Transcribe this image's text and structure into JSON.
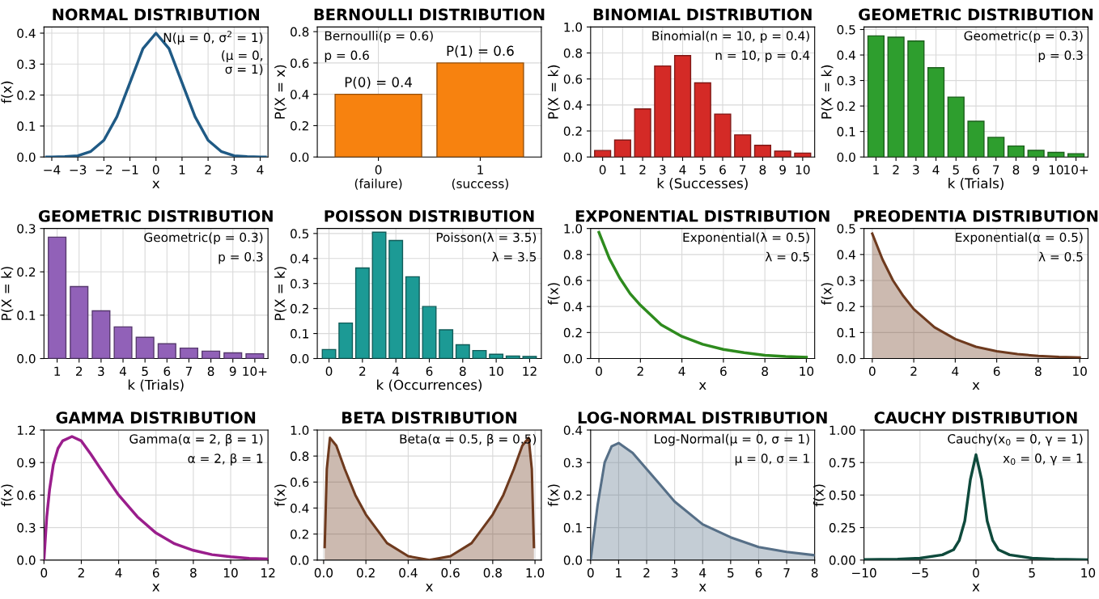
{
  "chart_data": [
    {
      "type": "line",
      "title": "NORMAL DISTRIBUTION",
      "xlabel": "x",
      "ylabel": "f(x)",
      "grid": true,
      "color": "#1f5a85",
      "x": [
        -4.2,
        -4,
        -3.5,
        -3,
        -2.5,
        -2,
        -1.5,
        -1,
        -0.5,
        0,
        0.5,
        1,
        1.5,
        2,
        2.5,
        3,
        3.5,
        4,
        4.2
      ],
      "values": [
        0,
        0,
        0.001,
        0.004,
        0.018,
        0.054,
        0.13,
        0.24,
        0.35,
        0.4,
        0.35,
        0.24,
        0.13,
        0.054,
        0.018,
        0.004,
        0.001,
        0,
        0
      ],
      "xlim": [
        -4.3,
        4.3
      ],
      "xticks": [
        {
          "value": -4,
          "label": "−4"
        },
        {
          "value": -3,
          "label": "−3"
        },
        {
          "value": -2,
          "label": "−2"
        },
        {
          "value": -1,
          "label": "−1"
        },
        0,
        1,
        2,
        3,
        4
      ],
      "ylim": [
        0,
        0.42
      ],
      "yticks": [
        {
          "value": 0,
          "label": "0.0"
        },
        0.1,
        0.2,
        0.3,
        0.4
      ],
      "annotations": [
        "N(μ = 0, σ$^{2}$ = 1)",
        "(μ = 0,\nσ = 1)"
      ]
    },
    {
      "type": "bar",
      "title": "BERNOULLI DISTRIBUTION",
      "ylabel": "P(X = x)",
      "grid": true,
      "color": "#f7820f",
      "categories": [
        "0\n(failure)",
        "1\n(success)"
      ],
      "values": [
        0.4,
        0.6
      ],
      "value_labels": [
        "P(0) = 0.4",
        "P(1) = 0.6"
      ],
      "ylim": [
        0,
        0.83
      ],
      "yticks": [
        {
          "value": 0,
          "label": "0.0"
        },
        0.2,
        0.4,
        0.6,
        0.8
      ],
      "annotations": [
        "Bernoulli(p = 0.6)",
        "p = 0.6"
      ]
    },
    {
      "type": "bar",
      "title": "BINOMIAL DISTRIBUTION",
      "xlabel": "k (Successes)",
      "ylabel": "P(X = k)",
      "grid": true,
      "color": "#d42a26",
      "categories": [
        "0",
        "1",
        "2",
        "3",
        "4",
        "5",
        "6",
        "7",
        "8",
        "9",
        "10"
      ],
      "values": [
        0.05,
        0.13,
        0.37,
        0.7,
        0.78,
        0.57,
        0.33,
        0.17,
        0.09,
        0.045,
        0.03
      ],
      "ylim": [
        0,
        1.0
      ],
      "yticks": [
        {
          "value": 0,
          "label": "0.0"
        },
        0.2,
        0.4,
        0.6,
        0.8,
        {
          "value": 1,
          "label": "1.0"
        }
      ],
      "annotations": [
        "Binomial(n = 10, p = 0.4)",
        "n = 10, p = 0.4"
      ]
    },
    {
      "type": "bar",
      "title": "GEOMETRIC DISTRIBUTION",
      "xlabel": "k (Trials)",
      "ylabel": "P(X = k)",
      "grid": true,
      "color": "#2e9e2e",
      "categories": [
        "1",
        "2",
        "3",
        "4",
        "5",
        "6",
        "7",
        "8",
        "9",
        "10",
        "10+"
      ],
      "values": [
        0.475,
        0.47,
        0.455,
        0.35,
        0.235,
        0.14,
        0.077,
        0.043,
        0.026,
        0.018,
        0.013
      ],
      "ylim": [
        0,
        0.51
      ],
      "yticks": [
        {
          "value": 0,
          "label": "0.0"
        },
        0.1,
        0.2,
        0.3,
        0.4,
        0.5
      ],
      "annotations": [
        "Geometric(p = 0.3)",
        "p = 0.3"
      ]
    },
    {
      "type": "bar",
      "title": "GEOMETRIC DISTRIBUTION",
      "xlabel": "k (Trials)",
      "ylabel": "P(X = k)",
      "grid": true,
      "color": "#9161b8",
      "categories": [
        "1",
        "2",
        "3",
        "4",
        "5",
        "6",
        "7",
        "8",
        "9",
        "10+"
      ],
      "values": [
        0.28,
        0.166,
        0.11,
        0.073,
        0.049,
        0.034,
        0.024,
        0.017,
        0.013,
        0.011
      ],
      "ylim": [
        0,
        0.3
      ],
      "yticks": [
        {
          "value": 0,
          "label": "0.0"
        },
        0.1,
        0.2,
        0.3
      ],
      "annotations": [
        "Geometric(p = 0.3)",
        "p = 0.3"
      ]
    },
    {
      "type": "bar",
      "title": "POISSON DISTRIBUTION",
      "xlabel": "k (Occurrences)",
      "ylabel": "P(X = k)",
      "grid": true,
      "color": "#1c9a95",
      "x": [
        0,
        1,
        2,
        3,
        4,
        5,
        6,
        7,
        8,
        9,
        10,
        11,
        12
      ],
      "values": [
        0.036,
        0.142,
        0.362,
        0.505,
        0.472,
        0.327,
        0.208,
        0.115,
        0.055,
        0.032,
        0.017,
        0.01,
        0.008
      ],
      "xlim": [
        -0.7,
        12.7
      ],
      "xticks": [
        0,
        2,
        4,
        6,
        8,
        10,
        12
      ],
      "ylim": [
        0,
        0.52
      ],
      "yticks": [
        {
          "value": 0,
          "label": "0.0"
        },
        0.1,
        0.2,
        0.3,
        0.4,
        0.5
      ],
      "annotations": [
        "Poisson(λ = 3.5)",
        "λ = 3.5"
      ]
    },
    {
      "type": "line",
      "title": "EXPONENTIAL DISTRIBUTION",
      "xlabel": "x",
      "ylabel": "f(x)",
      "grid": true,
      "color": "#2e8b1e",
      "x": [
        0,
        0.5,
        1,
        1.5,
        2,
        3,
        4,
        5,
        6,
        7,
        8,
        9,
        10
      ],
      "values": [
        0.97,
        0.77,
        0.62,
        0.5,
        0.41,
        0.26,
        0.17,
        0.11,
        0.07,
        0.045,
        0.025,
        0.015,
        0.01
      ],
      "xlim": [
        -0.4,
        10.4
      ],
      "xticks": [
        0,
        2,
        4,
        6,
        8,
        10
      ],
      "ylim": [
        0,
        1.0
      ],
      "yticks": [
        {
          "value": 0,
          "label": "0.0"
        },
        0.2,
        0.4,
        0.6,
        0.8,
        {
          "value": 1,
          "label": "1.0"
        }
      ],
      "annotations": [
        "Exponential(λ = 0.5)",
        "λ = 0.5"
      ]
    },
    {
      "type": "area",
      "title": "PREODENTIA DISTRIBUTION",
      "xlabel": "x",
      "ylabel": "f(x)",
      "grid": true,
      "color": "#6e3a1e",
      "x": [
        0,
        0.5,
        1,
        1.5,
        2,
        3,
        4,
        5,
        6,
        7,
        8,
        9,
        10
      ],
      "values": [
        0.48,
        0.38,
        0.3,
        0.24,
        0.19,
        0.12,
        0.075,
        0.045,
        0.028,
        0.017,
        0.01,
        0.006,
        0.004
      ],
      "xlim": [
        -0.4,
        10.4
      ],
      "xticks": [
        0,
        2,
        4,
        6,
        8,
        10
      ],
      "ylim": [
        0,
        0.5
      ],
      "yticks": [
        {
          "value": 0,
          "label": "0.0"
        },
        0.1,
        0.2,
        0.3,
        0.4,
        0.5
      ],
      "annotations": [
        "Exponential(α = 0.5)",
        "λ = 0.5"
      ]
    },
    {
      "type": "line",
      "title": "GAMMA DISTRIBUTION",
      "xlabel": "x",
      "ylabel": "f(x)",
      "grid": true,
      "color": "#9a1e8c",
      "x": [
        0,
        0.15,
        0.3,
        0.5,
        0.75,
        1,
        1.5,
        2,
        2.5,
        3,
        4,
        5,
        6,
        7,
        8,
        9,
        10,
        11,
        12
      ],
      "values": [
        0,
        0.4,
        0.65,
        0.88,
        1.03,
        1.1,
        1.14,
        1.1,
        0.98,
        0.85,
        0.6,
        0.4,
        0.25,
        0.15,
        0.09,
        0.05,
        0.03,
        0.015,
        0.01
      ],
      "xlim": [
        0,
        12
      ],
      "xticks": [
        0,
        2,
        4,
        6,
        8,
        10,
        12
      ],
      "ylim": [
        0,
        1.2
      ],
      "yticks": [
        {
          "value": 0,
          "label": "0.0"
        },
        0.3,
        0.6,
        0.9,
        1.2
      ],
      "annotations": [
        "Gamma(α = 2, β = 1)",
        "α = 2, β = 1"
      ]
    },
    {
      "type": "area",
      "title": "BETA DISTRIBUTION",
      "xlabel": "x",
      "ylabel": "f(x)",
      "grid": true,
      "color": "#6e3a1e",
      "x": [
        0.005,
        0.015,
        0.03,
        0.06,
        0.1,
        0.15,
        0.2,
        0.3,
        0.4,
        0.5,
        0.6,
        0.7,
        0.8,
        0.85,
        0.9,
        0.94,
        0.97,
        0.985,
        0.995
      ],
      "values": [
        0.1,
        0.7,
        0.94,
        0.88,
        0.7,
        0.5,
        0.35,
        0.13,
        0.03,
        0,
        0.03,
        0.13,
        0.35,
        0.5,
        0.7,
        0.88,
        0.94,
        0.7,
        0.1
      ],
      "xlim": [
        -0.03,
        1.03
      ],
      "xticks": [
        {
          "value": 0,
          "label": "0.0"
        },
        0.2,
        0.4,
        0.6,
        0.8,
        {
          "value": 1,
          "label": "1.0"
        }
      ],
      "ylim": [
        0,
        1.0
      ],
      "yticks": [
        {
          "value": 0,
          "label": "0.0"
        },
        0.2,
        0.4,
        0.6,
        0.8,
        {
          "value": 1,
          "label": "1.0"
        }
      ],
      "annotations": [
        "Beta(α = 0.5, β = 0.5)"
      ]
    },
    {
      "type": "area",
      "title": "LOG-NORMAL DISTRIBUTION",
      "xlabel": "x",
      "ylabel": "f(x)",
      "grid": true,
      "color": "#566f87",
      "x": [
        0,
        0.25,
        0.5,
        0.75,
        1,
        1.5,
        2,
        2.5,
        3,
        4,
        5,
        6,
        7,
        8
      ],
      "values": [
        0,
        0.17,
        0.3,
        0.35,
        0.36,
        0.33,
        0.28,
        0.23,
        0.18,
        0.11,
        0.07,
        0.04,
        0.025,
        0.015
      ],
      "xlim": [
        0,
        8
      ],
      "xticks": [
        0,
        1,
        2,
        3,
        4,
        5,
        6,
        7,
        8
      ],
      "ylim": [
        0,
        0.4
      ],
      "yticks": [
        {
          "value": 0,
          "label": "0.0"
        },
        0.1,
        0.2,
        0.3,
        0.4
      ],
      "annotations": [
        "Log-Normal(μ = 0, σ = 1)",
        "μ = 0, σ = 1"
      ]
    },
    {
      "type": "line",
      "title": "CAUCHY DISTRIBUTION",
      "xlabel": "x",
      "ylabel": "f(x)",
      "grid": true,
      "color": "#0f4a3c",
      "x": [
        -10,
        -7,
        -5,
        -3,
        -2,
        -1.5,
        -1,
        -0.5,
        0,
        0.5,
        1,
        1.5,
        2,
        3,
        5,
        7,
        10
      ],
      "values": [
        0.003,
        0.007,
        0.015,
        0.04,
        0.08,
        0.15,
        0.3,
        0.62,
        0.81,
        0.62,
        0.3,
        0.15,
        0.08,
        0.04,
        0.015,
        0.007,
        0.003
      ],
      "xlim": [
        -10,
        10
      ],
      "xticks": [
        {
          "value": -10,
          "label": "−10"
        },
        {
          "value": -5,
          "label": "−5"
        },
        0,
        5,
        10
      ],
      "ylim": [
        0,
        1.0
      ],
      "yticks": [
        {
          "value": 0,
          "label": "0.00"
        },
        {
          "value": 0.25,
          "label": "0.25"
        },
        {
          "value": 0.5,
          "label": "0.50"
        },
        {
          "value": 0.75,
          "label": "0.75"
        },
        {
          "value": 1,
          "label": "1.00"
        }
      ],
      "annotations": [
        "Cauchy(x$_{0}$ = 0, γ = 1)",
        "x$_{0}$ = 0, γ = 1"
      ]
    }
  ]
}
